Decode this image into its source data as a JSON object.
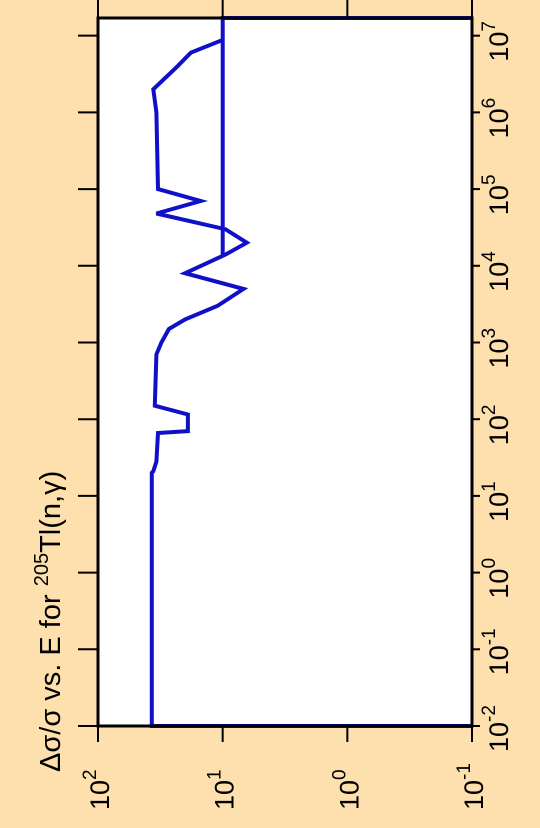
{
  "colors": {
    "background": "#fde0ad",
    "plot_area": "#ffffff",
    "axis": "#000000",
    "series": "#1010c8"
  },
  "chart_data": {
    "type": "line",
    "title_parts": [
      "Δσ/σ vs. E for ",
      "205",
      "Tl(n,γ)"
    ],
    "x_axis": {
      "label": "",
      "scale": "log",
      "range": [
        0.01,
        17000000
      ],
      "ticks": [
        0.01,
        0.1,
        1,
        10,
        100,
        1000,
        10000,
        100000,
        1000000,
        10000000
      ],
      "tick_labels": [
        {
          "base": "10",
          "exp": "-2"
        },
        {
          "base": "10",
          "exp": "-1"
        },
        {
          "base": "10",
          "exp": "0"
        },
        {
          "base": "10",
          "exp": "1"
        },
        {
          "base": "10",
          "exp": "2"
        },
        {
          "base": "10",
          "exp": "3"
        },
        {
          "base": "10",
          "exp": "4"
        },
        {
          "base": "10",
          "exp": "5"
        },
        {
          "base": "10",
          "exp": "6"
        },
        {
          "base": "10",
          "exp": "7"
        }
      ]
    },
    "y_axis": {
      "label": "",
      "scale": "log",
      "direction": "decreasing",
      "range": [
        100,
        0.1
      ],
      "ticks": [
        100,
        10,
        1,
        0.1
      ],
      "tick_labels": [
        {
          "base": "10",
          "exp": "2"
        },
        {
          "base": "10",
          "exp": "1"
        },
        {
          "base": "10",
          "exp": "0"
        },
        {
          "base": "10",
          "exp": "-1"
        }
      ]
    },
    "grid": false,
    "series": [
      {
        "style": "step",
        "points": [
          [
            0.01,
            0.1
          ],
          [
            0.01,
            37
          ],
          [
            20,
            37
          ],
          [
            21,
            36
          ],
          [
            28,
            34
          ],
          [
            66,
            33
          ],
          [
            70,
            19
          ],
          [
            115,
            19
          ],
          [
            150,
            35
          ],
          [
            700,
            34
          ],
          [
            1000,
            31
          ],
          [
            1500,
            27
          ],
          [
            2000,
            20
          ],
          [
            3000,
            11
          ],
          [
            5000,
            6.8
          ],
          [
            8000,
            20
          ],
          [
            14000,
            9.5
          ],
          [
            20000,
            6.4
          ],
          [
            30000,
            9.5
          ],
          [
            48000,
            34
          ],
          [
            70000,
            15
          ],
          [
            100000,
            33
          ],
          [
            1000000,
            34
          ],
          [
            2000000,
            36
          ],
          [
            4000000,
            23
          ],
          [
            6000000,
            18
          ],
          [
            8800000,
            10
          ],
          [
            13000,
            10
          ],
          [
            17000000,
            10
          ],
          [
            17000000,
            0.1
          ]
        ]
      }
    ]
  }
}
